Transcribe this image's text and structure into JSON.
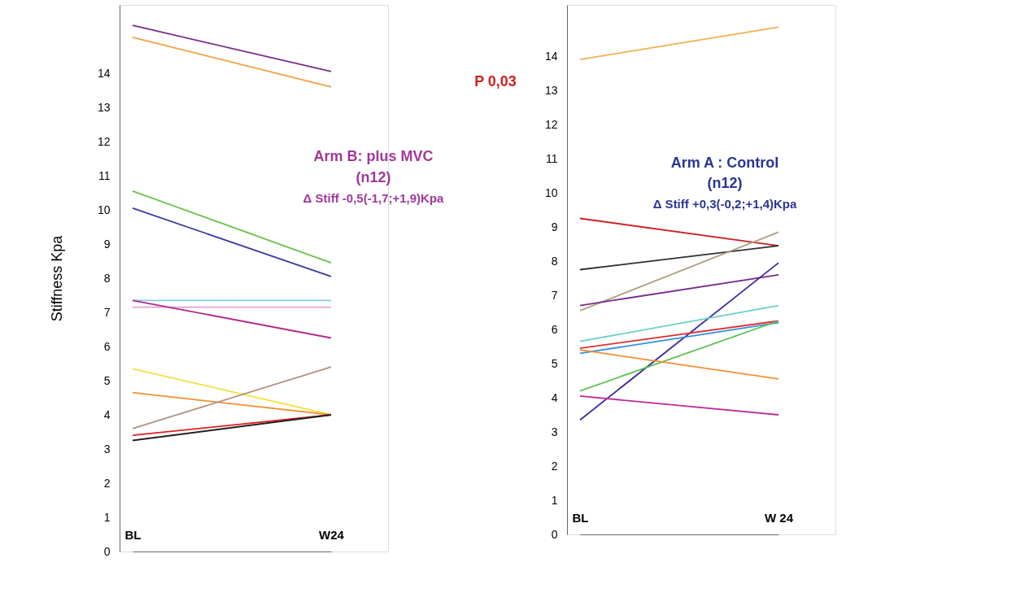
{
  "chart_data": [
    {
      "type": "line",
      "ylabel": "Stiffness Kpa",
      "categories": [
        "BL",
        "W24"
      ],
      "ylim": [
        0,
        16
      ],
      "yticks": [
        0,
        1,
        2,
        3,
        4,
        5,
        6,
        7,
        8,
        9,
        10,
        11,
        12,
        13,
        14
      ],
      "series": [
        {
          "color": "#7a2a8a",
          "values": [
            15.4,
            14.05
          ]
        },
        {
          "color": "#f0a040",
          "values": [
            15.05,
            13.6
          ]
        },
        {
          "color": "#6cc24a",
          "values": [
            10.55,
            8.45
          ]
        },
        {
          "color": "#3a3aa0",
          "values": [
            10.05,
            8.05
          ]
        },
        {
          "color": "#7fd0e8",
          "values": [
            7.35,
            7.35
          ]
        },
        {
          "color": "#e8a0d0",
          "values": [
            7.15,
            7.15
          ]
        },
        {
          "color": "#b02a8a",
          "values": [
            7.35,
            6.25
          ]
        },
        {
          "color": "#f0e040",
          "values": [
            5.35,
            4.0
          ]
        },
        {
          "color": "#f09030",
          "values": [
            4.65,
            4.0
          ]
        },
        {
          "color": "#b09080",
          "values": [
            3.6,
            5.4
          ]
        },
        {
          "color": "#e02020",
          "values": [
            3.4,
            4.0
          ]
        },
        {
          "color": "#202020",
          "values": [
            3.25,
            4.0
          ]
        }
      ],
      "annotations": [
        "Arm B: plus MVC",
        "(n12)",
        "Δ Stiff -0,5(-1,7;+1,9)Kpa",
        "P 0,03"
      ]
    },
    {
      "type": "line",
      "categories": [
        "BL",
        "W 24"
      ],
      "ylim": [
        0,
        15.5
      ],
      "yticks": [
        0,
        1,
        2,
        3,
        4,
        5,
        6,
        7,
        8,
        9,
        10,
        11,
        12,
        13,
        14
      ],
      "series": [
        {
          "color": "#f0b050",
          "values": [
            13.9,
            14.85
          ]
        },
        {
          "color": "#d02020",
          "values": [
            9.25,
            8.45
          ]
        },
        {
          "color": "#303030",
          "values": [
            7.75,
            8.45
          ]
        },
        {
          "color": "#b0a080",
          "values": [
            6.55,
            8.85
          ]
        },
        {
          "color": "#7a2a8a",
          "values": [
            6.7,
            7.6
          ]
        },
        {
          "color": "#3a2aa0",
          "values": [
            3.35,
            7.95
          ]
        },
        {
          "color": "#6ccfc8",
          "values": [
            5.65,
            6.7
          ]
        },
        {
          "color": "#e03030",
          "values": [
            5.45,
            6.25
          ]
        },
        {
          "color": "#3090e0",
          "values": [
            5.3,
            6.2
          ]
        },
        {
          "color": "#5cc050",
          "values": [
            4.2,
            6.25
          ]
        },
        {
          "color": "#f09030",
          "values": [
            5.4,
            4.55
          ]
        },
        {
          "color": "#c02a9a",
          "values": [
            4.05,
            3.5
          ]
        }
      ],
      "annotations": [
        "Arm A : Control",
        "(n12)",
        "Δ Stiff +0,3(-0,2;+1,4)Kpa"
      ]
    }
  ]
}
